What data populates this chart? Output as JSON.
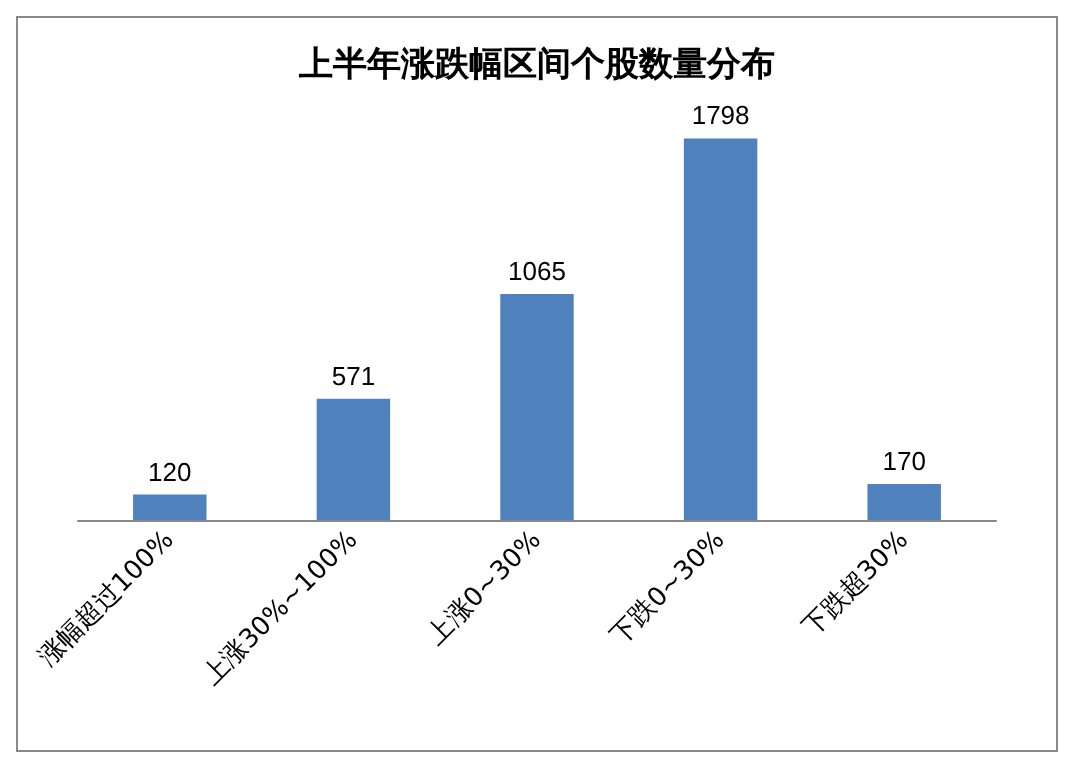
{
  "chart_data": {
    "type": "bar",
    "title": "上半年涨跌幅区间个股数量分布",
    "categories": [
      "涨幅超过100%",
      "上涨30%~100%",
      "上涨0~30%",
      "下跌0~30%",
      "下跌超30%"
    ],
    "values": [
      120,
      571,
      1065,
      1798,
      170
    ],
    "color": "#4f81bd",
    "data_labels": true,
    "grid": false,
    "tick_labels": "x"
  }
}
